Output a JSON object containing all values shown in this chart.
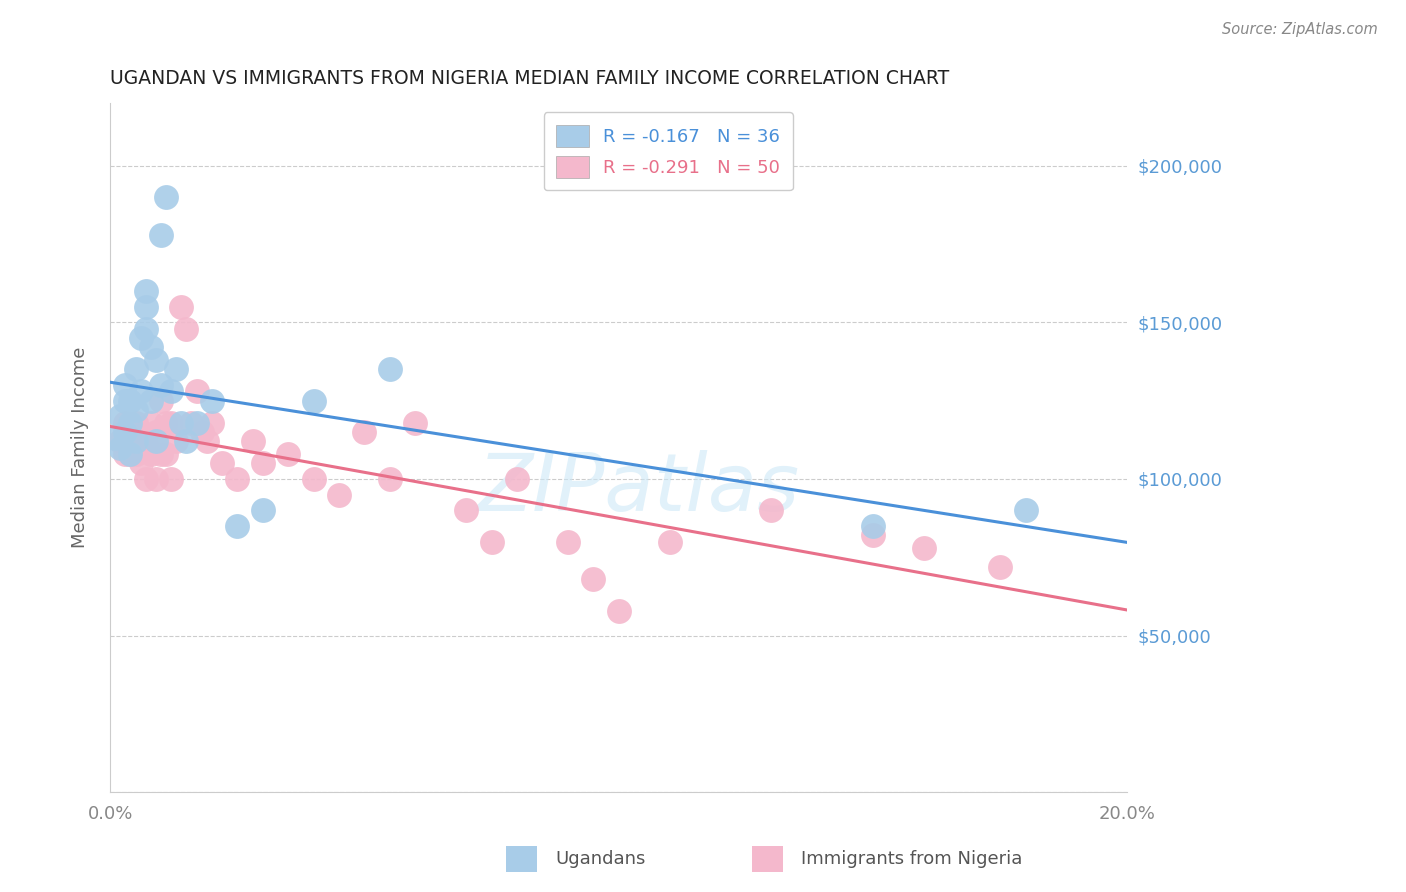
{
  "title": "UGANDAN VS IMMIGRANTS FROM NIGERIA MEDIAN FAMILY INCOME CORRELATION CHART",
  "source": "Source: ZipAtlas.com",
  "ylabel": "Median Family Income",
  "xlim": [
    0.0,
    0.2
  ],
  "ylim": [
    0,
    220000
  ],
  "yticks": [
    0,
    50000,
    100000,
    150000,
    200000
  ],
  "ytick_labels": [
    "",
    "$50,000",
    "$100,000",
    "$150,000",
    "$200,000"
  ],
  "xticks": [
    0.0,
    0.04,
    0.08,
    0.12,
    0.16,
    0.2
  ],
  "xtick_labels": [
    "0.0%",
    "",
    "",
    "",
    "",
    "20.0%"
  ],
  "background_color": "#ffffff",
  "grid_color": "#cccccc",
  "blue_color": "#a8cce8",
  "pink_color": "#f4b8cc",
  "blue_line_color": "#4a90d9",
  "pink_line_color": "#e8708a",
  "label_color": "#5b9bd5",
  "legend_label1": "R = -0.167   N = 36",
  "legend_label2": "R = -0.291   N = 50",
  "watermark": "ZIPatlas",
  "series1_label": "Ugandans",
  "series2_label": "Immigrants from Nigeria",
  "ugandan_x": [
    0.001,
    0.002,
    0.002,
    0.003,
    0.003,
    0.003,
    0.004,
    0.004,
    0.004,
    0.005,
    0.005,
    0.005,
    0.006,
    0.006,
    0.007,
    0.007,
    0.007,
    0.008,
    0.008,
    0.009,
    0.009,
    0.01,
    0.01,
    0.011,
    0.012,
    0.013,
    0.014,
    0.015,
    0.017,
    0.02,
    0.025,
    0.03,
    0.04,
    0.055,
    0.15,
    0.18
  ],
  "ugandan_y": [
    113000,
    120000,
    110000,
    130000,
    125000,
    115000,
    125000,
    118000,
    108000,
    135000,
    122000,
    112000,
    145000,
    128000,
    160000,
    155000,
    148000,
    142000,
    125000,
    138000,
    112000,
    178000,
    130000,
    190000,
    128000,
    135000,
    118000,
    112000,
    118000,
    125000,
    85000,
    90000,
    125000,
    135000,
    85000,
    90000
  ],
  "nigeria_x": [
    0.002,
    0.003,
    0.003,
    0.004,
    0.004,
    0.005,
    0.005,
    0.006,
    0.006,
    0.007,
    0.007,
    0.008,
    0.008,
    0.009,
    0.009,
    0.01,
    0.01,
    0.011,
    0.011,
    0.012,
    0.012,
    0.013,
    0.014,
    0.015,
    0.016,
    0.017,
    0.018,
    0.019,
    0.02,
    0.022,
    0.025,
    0.028,
    0.03,
    0.035,
    0.04,
    0.045,
    0.05,
    0.055,
    0.06,
    0.07,
    0.075,
    0.08,
    0.09,
    0.095,
    0.1,
    0.11,
    0.13,
    0.15,
    0.16,
    0.175
  ],
  "nigeria_y": [
    112000,
    118000,
    108000,
    115000,
    108000,
    118000,
    108000,
    115000,
    105000,
    112000,
    100000,
    118000,
    108000,
    115000,
    100000,
    125000,
    108000,
    118000,
    108000,
    118000,
    100000,
    112000,
    155000,
    148000,
    118000,
    128000,
    115000,
    112000,
    118000,
    105000,
    100000,
    112000,
    105000,
    108000,
    100000,
    95000,
    115000,
    100000,
    118000,
    90000,
    80000,
    100000,
    80000,
    68000,
    58000,
    80000,
    90000,
    82000,
    78000,
    72000
  ]
}
